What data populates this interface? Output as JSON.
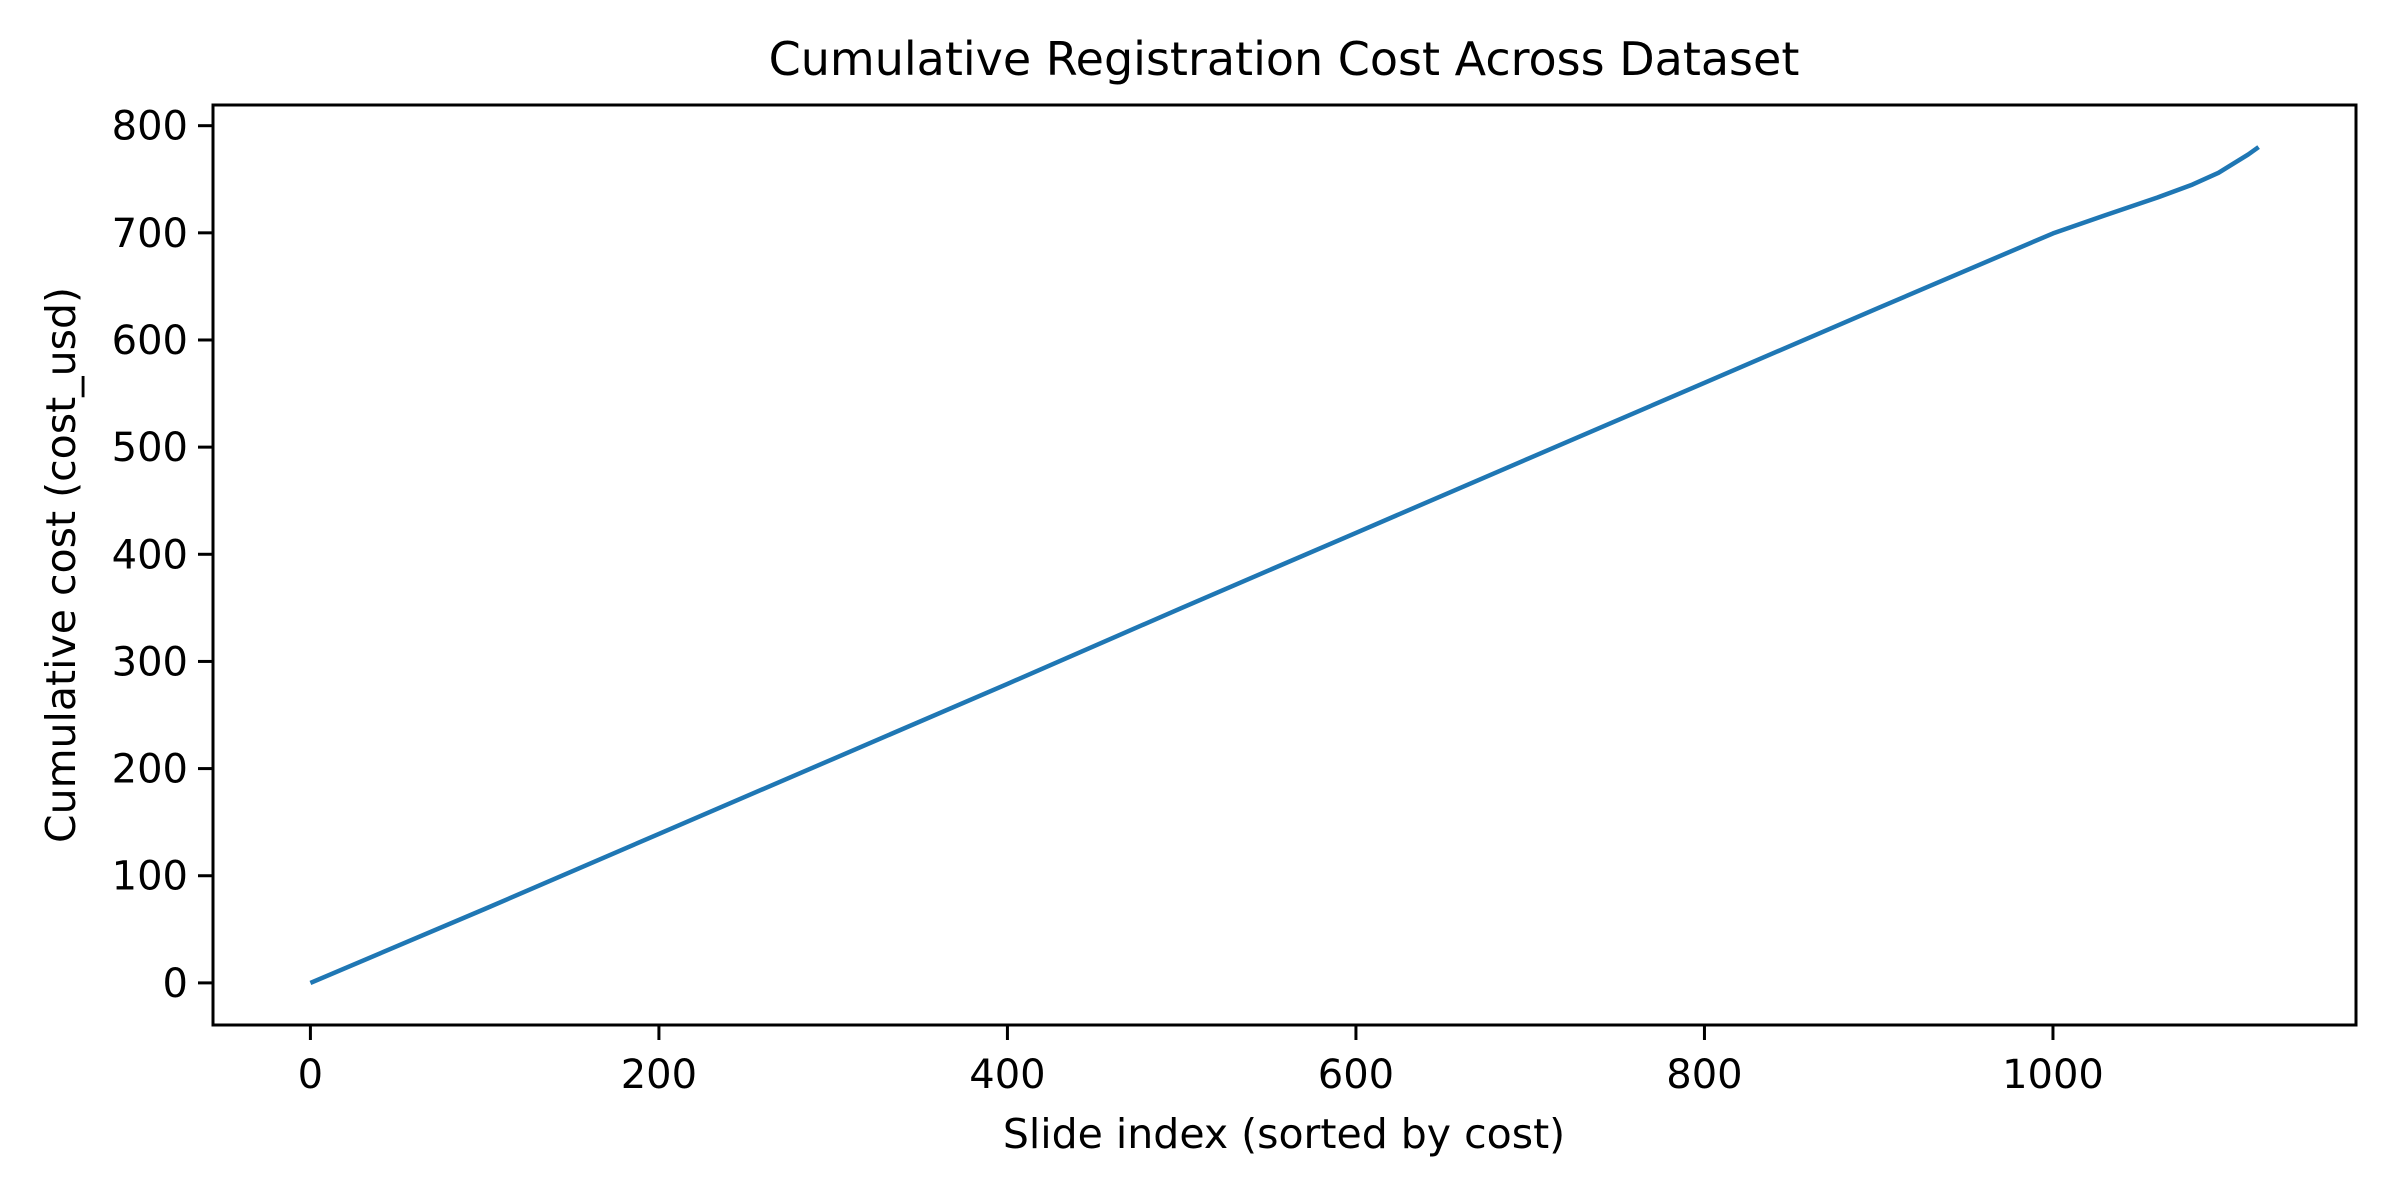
{
  "chart_data": {
    "type": "line",
    "title": "Cumulative Registration Cost Across Dataset",
    "xlabel": "Slide index (sorted by cost)",
    "ylabel": "Cumulative cost (cost_usd)",
    "x_ticks": [
      0,
      200,
      400,
      600,
      800,
      1000
    ],
    "y_ticks": [
      0,
      100,
      200,
      300,
      400,
      500,
      600,
      700,
      800
    ],
    "xlim": [
      -55.9,
      1173.9
    ],
    "ylim": [
      -39.3,
      819.3
    ],
    "grid": false,
    "legend": null,
    "background_color": "#ffffff",
    "axes_color": "#000000",
    "series": [
      {
        "name": "cumulative_cost_usd",
        "color": "#1f77b4",
        "x": [
          0,
          100,
          200,
          300,
          400,
          500,
          600,
          700,
          800,
          900,
          1000,
          1030,
          1060,
          1080,
          1095,
          1105,
          1112,
          1118
        ],
        "y": [
          0,
          69.0,
          139.0,
          209.0,
          279.0,
          350.0,
          420.0,
          490.0,
          560.0,
          630.0,
          699.5,
          716.5,
          733.0,
          745.0,
          756.0,
          766.0,
          773.0,
          780.0
        ]
      }
    ]
  }
}
